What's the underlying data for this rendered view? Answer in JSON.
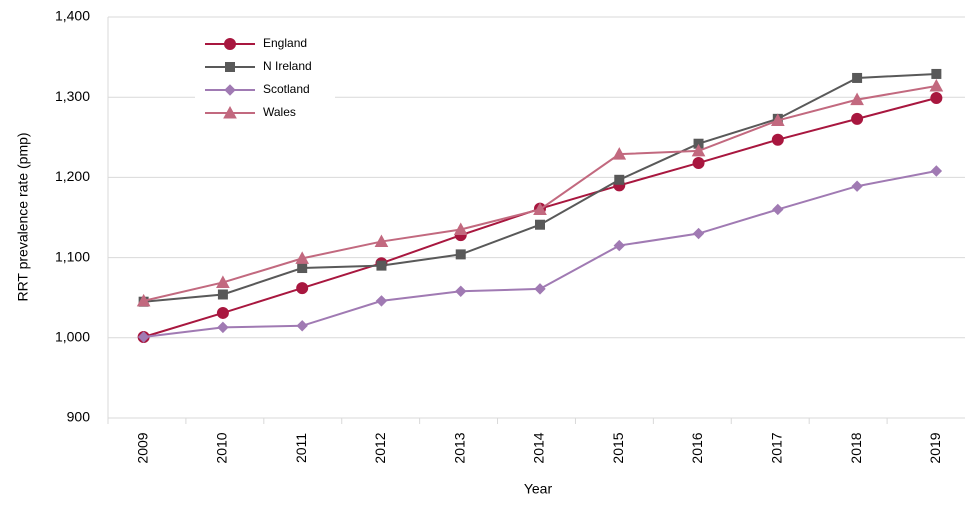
{
  "chart_data": {
    "type": "line",
    "x_label": "Year",
    "y_label": "RRT prevalence rate (pmp)",
    "categories": [
      "2009",
      "2010",
      "2011",
      "2012",
      "2013",
      "2014",
      "2015",
      "2016",
      "2017",
      "2018",
      "2019"
    ],
    "series": [
      {
        "name": "England",
        "color": "#a8173f",
        "marker": "circle",
        "values": [
          1001,
          1031,
          1062,
          1093,
          1128,
          1161,
          1190,
          1218,
          1247,
          1273,
          1299
        ]
      },
      {
        "name": "N Ireland",
        "color": "#595959",
        "marker": "square",
        "values": [
          1045,
          1054,
          1087,
          1090,
          1104,
          1141,
          1197,
          1242,
          1273,
          1324,
          1329
        ]
      },
      {
        "name": "Scotland",
        "color": "#a07ab3",
        "marker": "diamond",
        "values": [
          1001,
          1013,
          1015,
          1046,
          1058,
          1061,
          1115,
          1130,
          1160,
          1189,
          1208
        ]
      },
      {
        "name": "Wales",
        "color": "#c2697f",
        "marker": "triangle",
        "values": [
          1046,
          1069,
          1099,
          1120,
          1135,
          1160,
          1229,
          1233,
          1271,
          1297,
          1314
        ]
      }
    ],
    "ylim": [
      900,
      1400
    ],
    "yticks": [
      900,
      {
        "value": 1000,
        "label": "1,000"
      },
      {
        "value": 1100,
        "label": "1,100"
      },
      {
        "value": 1200,
        "label": "1,200"
      },
      {
        "value": 1300,
        "label": "1,300"
      },
      {
        "value": 1400,
        "label": "1,400"
      }
    ],
    "grid": true,
    "legend": "upper left"
  }
}
